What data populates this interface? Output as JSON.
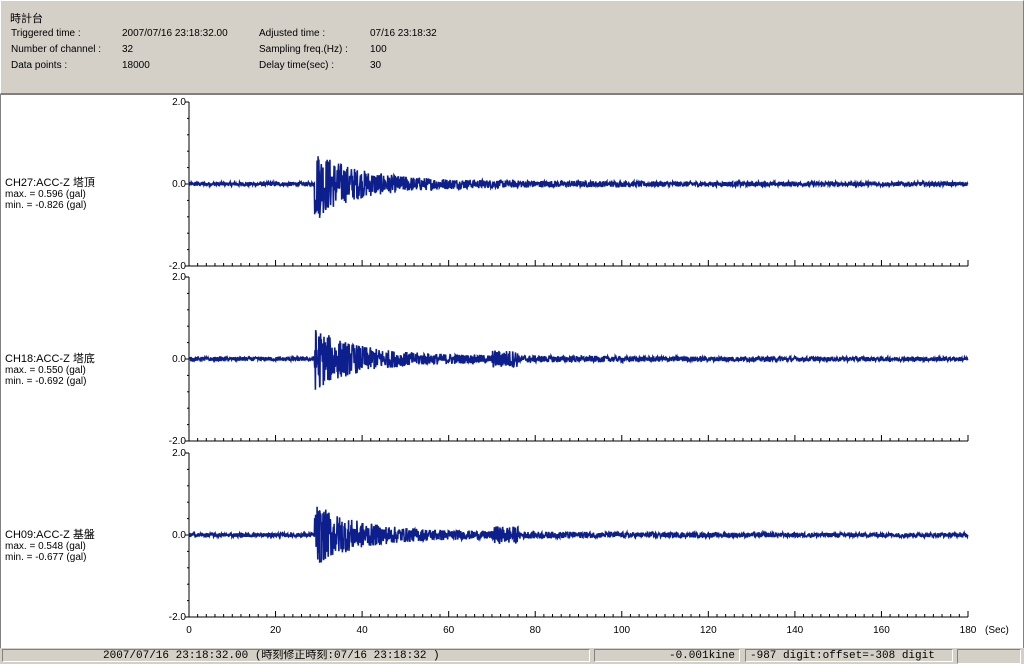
{
  "header": {
    "title": "時計台",
    "triggered_label": "Triggered time :",
    "triggered_value": "2007/07/16 23:18:32.00",
    "channels_label": "Number of channel :",
    "channels_value": "32",
    "datapoints_label": "Data points :",
    "datapoints_value": "18000",
    "adjusted_label": "Adjusted time :",
    "adjusted_value": "07/16 23:18:32",
    "sampling_label": "Sampling freq.(Hz) :",
    "sampling_value": "100",
    "delay_label": "Delay time(sec) :",
    "delay_value": "30"
  },
  "chart_data": {
    "type": "line",
    "x_unit": "(Sec)",
    "xlim": [
      0,
      180
    ],
    "x_ticks": [
      "0",
      "20",
      "40",
      "60",
      "80",
      "100",
      "120",
      "140",
      "160",
      "180"
    ],
    "y_ticks": [
      "2.0",
      "0.0",
      "-2.0"
    ],
    "ylim": [
      -2.0,
      2.0
    ],
    "event_onset_sec": 29,
    "series_color": "#0d1f8c",
    "channels": [
      {
        "name": "CH27:ACC-Z 塔頂",
        "max": "max. = 0.596 (gal)",
        "min": "min. = -0.826 (gal)",
        "max_value": 0.596,
        "min_value": -0.826
      },
      {
        "name": "CH18:ACC-Z 塔底",
        "max": "max. = 0.550 (gal)",
        "min": "min. = -0.692 (gal)",
        "max_value": 0.55,
        "min_value": -0.692
      },
      {
        "name": "CH09:ACC-Z 基盤",
        "max": "max. = 0.548 (gal)",
        "min": "min. = -0.677 (gal)",
        "max_value": 0.548,
        "min_value": -0.677
      }
    ]
  },
  "status": {
    "time": "2007/07/16 23:18:32.00  (時刻修正時刻:07/16 23:18:32  )",
    "kine": "-0.001kine",
    "digit": "-987 digit:offset=-308 digit"
  }
}
